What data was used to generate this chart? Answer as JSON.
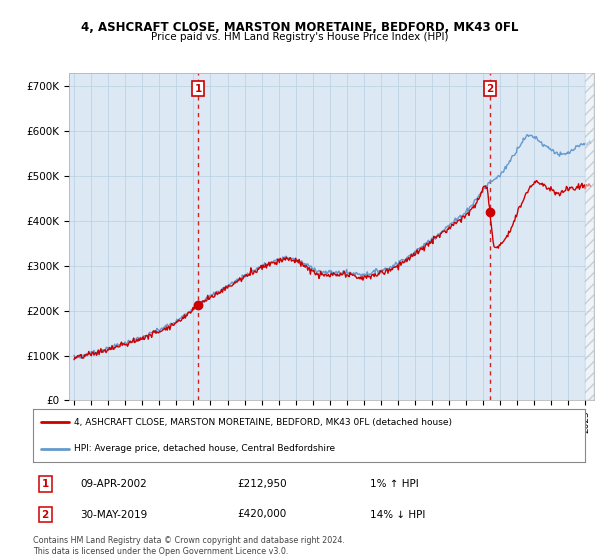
{
  "title_line1": "4, ASHCRAFT CLOSE, MARSTON MORETAINE, BEDFORD, MK43 0FL",
  "title_line2": "Price paid vs. HM Land Registry's House Price Index (HPI)",
  "ylabel_ticks": [
    "£0",
    "£100K",
    "£200K",
    "£300K",
    "£400K",
    "£500K",
    "£600K",
    "£700K"
  ],
  "ytick_values": [
    0,
    100000,
    200000,
    300000,
    400000,
    500000,
    600000,
    700000
  ],
  "ylim": [
    0,
    730000
  ],
  "xlim_start": 1994.7,
  "xlim_end": 2025.5,
  "background_color": "#dce9f5",
  "plot_bg_color": "#dce9f5",
  "grid_color": "#b8cfe0",
  "hpi_color": "#6699cc",
  "price_color": "#cc0000",
  "dashed_line_color": "#cc0000",
  "transaction1": {
    "date_num": 2002.27,
    "price": 212950,
    "label": "1",
    "date_str": "09-APR-2002",
    "price_str": "£212,950",
    "hpi_str": "1% ↑ HPI"
  },
  "transaction2": {
    "date_num": 2019.41,
    "price": 420000,
    "label": "2",
    "date_str": "30-MAY-2019",
    "price_str": "£420,000",
    "hpi_str": "14% ↓ HPI"
  },
  "legend_line1": "4, ASHCRAFT CLOSE, MARSTON MORETAINE, BEDFORD, MK43 0FL (detached house)",
  "legend_line2": "HPI: Average price, detached house, Central Bedfordshire",
  "footer": "Contains HM Land Registry data © Crown copyright and database right 2024.\nThis data is licensed under the Open Government Licence v3.0.",
  "xtick_years": [
    1995,
    1996,
    1997,
    1998,
    1999,
    2000,
    2001,
    2002,
    2003,
    2004,
    2005,
    2006,
    2007,
    2008,
    2009,
    2010,
    2011,
    2012,
    2013,
    2014,
    2015,
    2016,
    2017,
    2018,
    2019,
    2020,
    2021,
    2022,
    2023,
    2024,
    2025
  ]
}
